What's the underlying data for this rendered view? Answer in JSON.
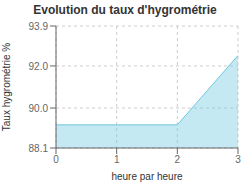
{
  "chart_data": {
    "type": "area",
    "title": "Evolution du taux d'hygrométrie",
    "xlabel": "heure par heure",
    "ylabel": "Taux hygrométrie %",
    "x": [
      0,
      2,
      3
    ],
    "values": [
      89.2,
      89.2,
      92.5
    ],
    "color": "#6cc8e0",
    "xlim": [
      0,
      3
    ],
    "ylim": [
      88.1,
      93.9
    ],
    "xticks": [
      0,
      1,
      2,
      3
    ],
    "yticks": [
      88.1,
      {
        "value": 90.0,
        "label": "90.0"
      },
      {
        "value": 92.0,
        "label": "92.0"
      },
      93.9
    ],
    "grid": true
  }
}
